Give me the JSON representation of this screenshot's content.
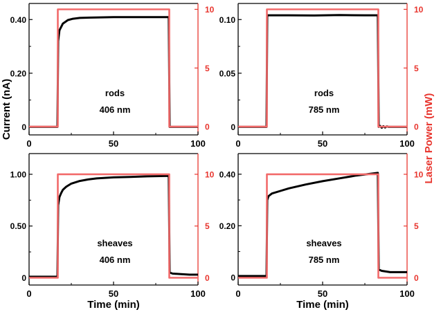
{
  "figure": {
    "y_label_left": "Current (nA)",
    "y_label_right": "Laser Power (mW)",
    "x_label": "Time (min)",
    "left_color": "#000000",
    "right_color": "#e8352e",
    "laser_line_color": "#f26a6a"
  },
  "chart_data": [
    {
      "type": "line",
      "panel_text": [
        "rods",
        "406 nm"
      ],
      "xlim": [
        0,
        100
      ],
      "x_ticks": [
        "0",
        "50",
        "100"
      ],
      "ylim_left": [
        -0.03,
        0.46
      ],
      "y_ticks_left": [
        {
          "v": 0,
          "label": "0"
        },
        {
          "v": 0.2,
          "label": "0.20"
        },
        {
          "v": 0.4,
          "label": "0.40"
        }
      ],
      "ylim_right": [
        -0.7,
        10.5
      ],
      "y_ticks_right": [
        {
          "v": 0,
          "label": "0"
        },
        {
          "v": 5,
          "label": "5"
        },
        {
          "v": 10,
          "label": "10"
        }
      ],
      "show_x_label": false,
      "series": [
        {
          "role": "current",
          "axis": "left",
          "x": [
            0,
            16.8,
            17.2,
            18,
            20,
            23,
            26,
            30,
            40,
            50,
            60,
            70,
            80,
            82.7,
            83.2,
            100
          ],
          "y": [
            0,
            0,
            0.32,
            0.36,
            0.385,
            0.398,
            0.403,
            0.406,
            0.408,
            0.409,
            0.409,
            0.409,
            0.409,
            0.409,
            0,
            0
          ]
        },
        {
          "role": "laser",
          "axis": "right",
          "x": [
            0,
            17,
            17,
            83,
            83,
            100
          ],
          "y": [
            0,
            0,
            10,
            10,
            0,
            0
          ]
        }
      ]
    },
    {
      "type": "line",
      "panel_text": [
        "rods",
        "785 nm"
      ],
      "xlim": [
        0,
        100
      ],
      "x_ticks": [
        "0",
        "50",
        "100"
      ],
      "ylim_left": [
        -0.0075,
        0.115
      ],
      "y_ticks_left": [
        {
          "v": 0,
          "label": "0"
        },
        {
          "v": 0.05,
          "label": "0.05"
        },
        {
          "v": 0.1,
          "label": "0.10"
        }
      ],
      "ylim_right": [
        -0.7,
        10.5
      ],
      "y_ticks_right": [
        {
          "v": 0,
          "label": "0"
        },
        {
          "v": 5,
          "label": "5"
        },
        {
          "v": 10,
          "label": "10"
        }
      ],
      "show_x_label": false,
      "series": [
        {
          "role": "current",
          "axis": "left",
          "x": [
            0,
            16.8,
            17.2,
            18,
            30,
            45,
            60,
            75,
            82.7,
            83.2,
            84,
            85,
            86,
            87,
            88,
            89,
            90,
            100
          ],
          "y": [
            0,
            0,
            0.104,
            0.104,
            0.104,
            0.1038,
            0.1042,
            0.104,
            0.104,
            0,
            0.0008,
            -0.0008,
            0.0006,
            -0.0006,
            0.0004,
            0,
            0,
            0
          ]
        },
        {
          "role": "laser",
          "axis": "right",
          "x": [
            0,
            17,
            17,
            83,
            83,
            100
          ],
          "y": [
            0,
            0,
            10,
            10,
            0,
            0
          ]
        }
      ]
    },
    {
      "type": "line",
      "panel_text": [
        "sheaves",
        "406 nm"
      ],
      "xlim": [
        0,
        100
      ],
      "x_ticks": [
        "0",
        "50",
        "100"
      ],
      "ylim_left": [
        -0.07,
        1.2
      ],
      "y_ticks_left": [
        {
          "v": 0,
          "label": "0"
        },
        {
          "v": 0.5,
          "label": "0.50"
        },
        {
          "v": 1.0,
          "label": "1.00"
        }
      ],
      "ylim_right": [
        -0.7,
        12
      ],
      "y_ticks_right": [
        {
          "v": 0,
          "label": "0"
        },
        {
          "v": 5,
          "label": "5"
        },
        {
          "v": 10,
          "label": "10"
        }
      ],
      "show_x_label": true,
      "series": [
        {
          "role": "current",
          "axis": "left",
          "x": [
            0,
            16.8,
            17.2,
            18,
            19,
            20,
            22,
            25,
            30,
            35,
            40,
            50,
            60,
            70,
            82.7,
            83.2,
            85,
            90,
            95,
            100
          ],
          "y": [
            0.01,
            0.01,
            0.7,
            0.78,
            0.82,
            0.85,
            0.88,
            0.91,
            0.935,
            0.95,
            0.96,
            0.97,
            0.975,
            0.98,
            0.985,
            0.05,
            0.04,
            0.035,
            0.03,
            0.03
          ]
        },
        {
          "role": "laser",
          "axis": "right",
          "x": [
            0,
            17,
            17,
            83,
            83,
            100
          ],
          "y": [
            0,
            0,
            10,
            10,
            0,
            0
          ]
        }
      ]
    },
    {
      "type": "line",
      "panel_text": [
        "sheaves",
        "785 nm"
      ],
      "xlim": [
        0,
        100
      ],
      "x_ticks": [
        "0",
        "50",
        "100"
      ],
      "ylim_left": [
        -0.03,
        0.48
      ],
      "y_ticks_left": [
        {
          "v": 0,
          "label": "0"
        },
        {
          "v": 0.2,
          "label": "0.20"
        },
        {
          "v": 0.4,
          "label": "0.40"
        }
      ],
      "ylim_right": [
        -0.7,
        12
      ],
      "y_ticks_right": [
        {
          "v": 0,
          "label": "0"
        },
        {
          "v": 5,
          "label": "5"
        },
        {
          "v": 10,
          "label": "10"
        }
      ],
      "show_x_label": true,
      "series": [
        {
          "role": "current",
          "axis": "left",
          "x": [
            0,
            16.8,
            17.2,
            18,
            20,
            25,
            30,
            40,
            50,
            60,
            70,
            82.7,
            83.2,
            85,
            90,
            100
          ],
          "y": [
            0.005,
            0.005,
            0.3,
            0.315,
            0.325,
            0.335,
            0.345,
            0.36,
            0.373,
            0.384,
            0.395,
            0.405,
            0.03,
            0.025,
            0.02,
            0.02
          ]
        },
        {
          "role": "laser",
          "axis": "right",
          "x": [
            0,
            17,
            17,
            83,
            83,
            100
          ],
          "y": [
            0,
            0,
            10,
            10,
            0,
            0
          ]
        }
      ]
    }
  ]
}
